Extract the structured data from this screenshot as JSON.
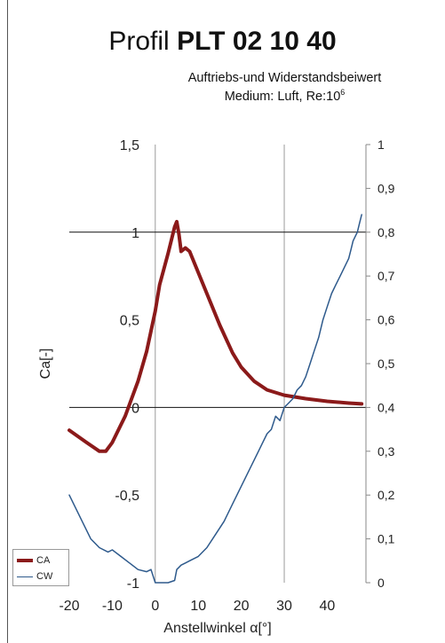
{
  "title": {
    "prefix": "Profil",
    "bold": "PLT 02 10 40"
  },
  "subtitle": {
    "line1": "Auftriebs-und Widerstandsbeiwert",
    "line2": "Medium: Luft, Re:10",
    "line2_sup": "6"
  },
  "chart_data": {
    "type": "line",
    "title": "Profil PLT 02 10 40",
    "subtitle": "Auftriebs-und Widerstandsbeiwert, Medium: Luft, Re:10^6",
    "xlabel": "Anstellwinkel  α[°]",
    "ylabel": "Ca[-]",
    "xlim": [
      -20,
      49
    ],
    "ylim": [
      -1,
      1.5
    ],
    "y2lim": [
      0,
      1
    ],
    "x_ticks": [
      -20,
      -10,
      0,
      10,
      20,
      30,
      40
    ],
    "x_tick_labels": [
      "-20",
      "-10",
      "0",
      "10",
      "20",
      "30",
      "40"
    ],
    "y_ticks": [
      -1,
      -0.5,
      0,
      0.5,
      1,
      1.5
    ],
    "y_tick_labels": [
      "-1",
      "-0,5",
      "0",
      "0,5",
      "1",
      "1,5"
    ],
    "y2_ticks": [
      0,
      0.1,
      0.2,
      0.3,
      0.4,
      0.5,
      0.6,
      0.7,
      0.8,
      0.9,
      1
    ],
    "y2_tick_labels": [
      "0",
      "0,1",
      "0,2",
      "0,3",
      "0,4",
      "0,5",
      "0,6",
      "0,7",
      "0,8",
      "0,9",
      "1"
    ],
    "gridlines_x": [
      0,
      30
    ],
    "gridlines_y": [
      0,
      1
    ],
    "legend_position": "bottom-left",
    "series": [
      {
        "name": "CA",
        "axis": "left",
        "color": "#8b1a1a",
        "x": [
          -20,
          -16,
          -13,
          -11.5,
          -10,
          -7,
          -4,
          -2,
          0,
          1,
          3,
          4.5,
          5,
          5.5,
          6,
          7,
          8,
          10,
          12,
          15,
          18,
          20,
          23,
          26,
          30,
          35,
          40,
          45,
          48
        ],
        "y": [
          -0.13,
          -0.2,
          -0.25,
          -0.25,
          -0.2,
          -0.05,
          0.15,
          0.32,
          0.55,
          0.7,
          0.88,
          1.03,
          1.06,
          0.99,
          0.89,
          0.91,
          0.89,
          0.77,
          0.65,
          0.47,
          0.31,
          0.23,
          0.15,
          0.1,
          0.07,
          0.05,
          0.035,
          0.025,
          0.02
        ]
      },
      {
        "name": "CW",
        "axis": "right",
        "color": "#2e5a8c",
        "x": [
          -20,
          -17,
          -15,
          -13,
          -11,
          -10,
          -8,
          -6,
          -4,
          -2,
          -1,
          0,
          1,
          2,
          3,
          4.5,
          5,
          6,
          7,
          8,
          10,
          12,
          14,
          16,
          18,
          20,
          22,
          24,
          25,
          26,
          27,
          28,
          29,
          30,
          31,
          32,
          33,
          34,
          35,
          36,
          37,
          38,
          39,
          40,
          41,
          42,
          43,
          44,
          45,
          45.5,
          46,
          46.5,
          47,
          47.5,
          48
        ],
        "y": [
          0.2,
          0.14,
          0.1,
          0.08,
          0.07,
          0.075,
          0.06,
          0.045,
          0.03,
          0.025,
          0.03,
          0.0,
          0.0,
          0.0,
          0.0,
          0.005,
          0.03,
          0.04,
          0.045,
          0.05,
          0.06,
          0.08,
          0.11,
          0.14,
          0.18,
          0.22,
          0.26,
          0.3,
          0.32,
          0.34,
          0.35,
          0.38,
          0.37,
          0.4,
          0.41,
          0.42,
          0.44,
          0.45,
          0.47,
          0.5,
          0.53,
          0.56,
          0.6,
          0.63,
          0.66,
          0.68,
          0.7,
          0.72,
          0.74,
          0.76,
          0.78,
          0.79,
          0.8,
          0.82,
          0.84
        ]
      }
    ]
  },
  "legend": {
    "items": [
      {
        "label": "CA",
        "color": "#8b1a1a"
      },
      {
        "label": "CW",
        "color": "#2e5a8c"
      }
    ]
  }
}
